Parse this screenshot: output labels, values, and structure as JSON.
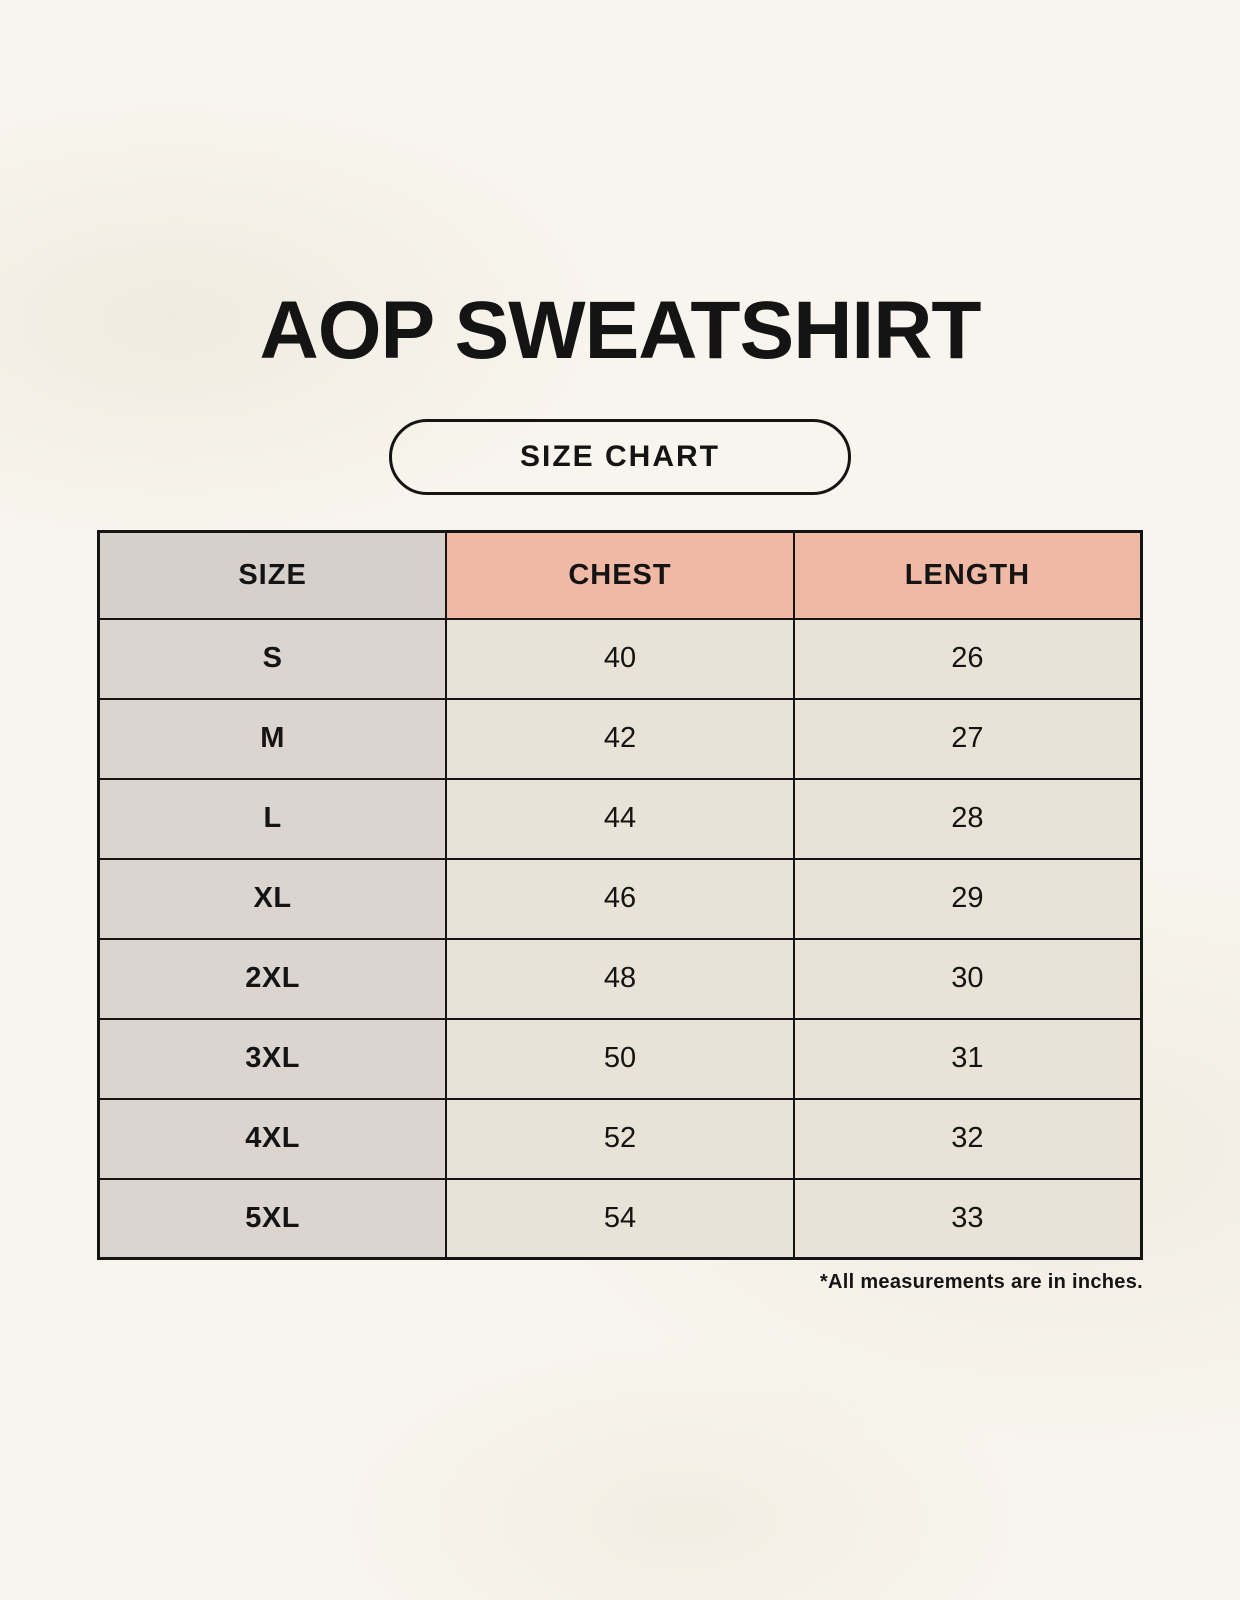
{
  "header": {
    "title": "AOP SWEATSHIRT",
    "badge_label": "SIZE CHART"
  },
  "chart_data": {
    "type": "table",
    "title": "AOP SWEATSHIRT",
    "subtitle": "SIZE CHART",
    "columns": [
      "SIZE",
      "CHEST",
      "LENGTH"
    ],
    "rows": [
      [
        "S",
        40,
        26
      ],
      [
        "M",
        42,
        27
      ],
      [
        "L",
        44,
        28
      ],
      [
        "XL",
        46,
        29
      ],
      [
        "2XL",
        48,
        30
      ],
      [
        "3XL",
        50,
        31
      ],
      [
        "4XL",
        52,
        32
      ],
      [
        "5XL",
        54,
        33
      ]
    ],
    "units": "inches"
  },
  "footer": {
    "note": "*All measurements are in inches."
  },
  "colors": {
    "background": "#f8f5ee",
    "size_header": "#d7d0ca",
    "size_column": "#dcd5cf",
    "accent_header": "#f0b9a6",
    "value_cell": "#e9e2d6",
    "border": "#141414",
    "text": "#141414"
  }
}
